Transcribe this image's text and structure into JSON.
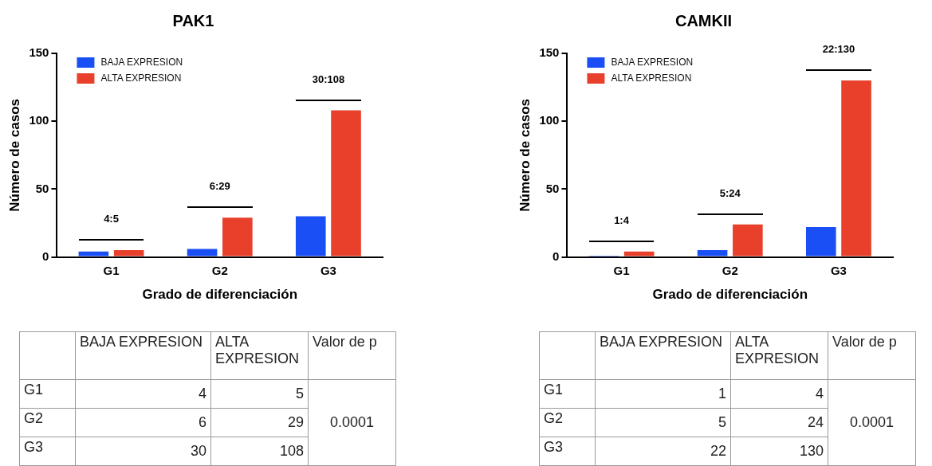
{
  "chart_data": [
    {
      "type": "bar",
      "title": "PAK1",
      "xlabel": "Grado de diferenciación",
      "ylabel": "Número de casos",
      "categories": [
        "G1",
        "G2",
        "G3"
      ],
      "series": [
        {
          "name": "BAJA EXPRESION",
          "color": "#1a4ff5",
          "values": [
            4,
            6,
            30
          ]
        },
        {
          "name": "ALTA EXPRESION",
          "color": "#e8402a",
          "values": [
            5,
            29,
            108
          ]
        }
      ],
      "ylim": [
        0,
        150
      ],
      "yticks": [
        0,
        50,
        100,
        150
      ],
      "grid": false,
      "legend": "top left",
      "annotations": [
        "4:5",
        "6:29",
        "30:108"
      ]
    },
    {
      "type": "bar",
      "title": "CAMKII",
      "xlabel": "Grado de diferenciación",
      "ylabel": "Número de casos",
      "categories": [
        "G1",
        "G2",
        "G3"
      ],
      "series": [
        {
          "name": "BAJA EXPRESION",
          "color": "#1a4ff5",
          "values": [
            1,
            5,
            22
          ]
        },
        {
          "name": "ALTA EXPRESION",
          "color": "#e8402a",
          "values": [
            4,
            24,
            130
          ]
        }
      ],
      "ylim": [
        0,
        150
      ],
      "yticks": [
        0,
        50,
        100,
        150
      ],
      "grid": false,
      "legend": "top left",
      "annotations": [
        "1:4",
        "5:24",
        "22:130"
      ]
    },
    {
      "type": "other",
      "categories": [
        "G1",
        "G2",
        "G3"
      ],
      "series": [
        {
          "name": "BAJA EXPRESION",
          "values": [
            4,
            6,
            30
          ]
        },
        {
          "name": "ALTA EXPRESION",
          "values": [
            5,
            29,
            108
          ]
        }
      ],
      "data_labels": true,
      "annotations": [
        "Valor de p",
        "0.0001"
      ]
    },
    {
      "type": "other",
      "categories": [
        "G1",
        "G2",
        "G3"
      ],
      "series": [
        {
          "name": "BAJA EXPRESION",
          "values": [
            1,
            5,
            22
          ]
        },
        {
          "name": "ALTA EXPRESION",
          "values": [
            4,
            24,
            130
          ]
        }
      ],
      "data_labels": true,
      "annotations": [
        "Valor de p",
        "0.0001"
      ]
    }
  ]
}
